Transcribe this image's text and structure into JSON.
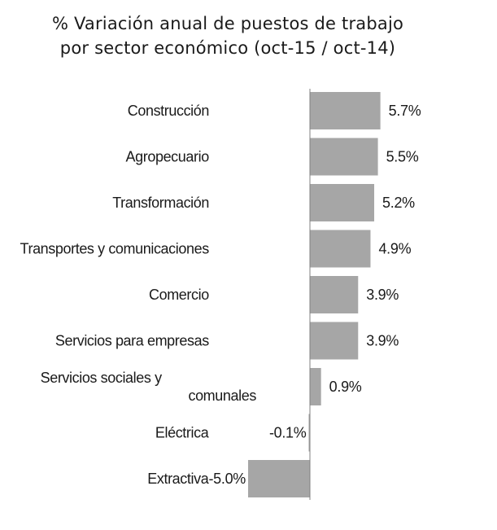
{
  "chart_data": {
    "type": "bar",
    "orientation": "horizontal",
    "title": [
      "% Variación anual de puestos de trabajo",
      "por sector económico (oct-15 / oct-14)"
    ],
    "categories": [
      [
        "Construcción"
      ],
      [
        "Agropecuario"
      ],
      [
        "Transformación"
      ],
      [
        "Transportes y comunicaciones"
      ],
      [
        "Comercio"
      ],
      [
        "Servicios para empresas"
      ],
      [
        "Servicios sociales y",
        "comunales"
      ],
      [
        "Eléctrica"
      ],
      [
        "Extractiva"
      ]
    ],
    "values": [
      5.7,
      5.5,
      5.2,
      4.9,
      3.9,
      3.9,
      0.9,
      -0.1,
      -5.0
    ],
    "data_labels": [
      "5.7%",
      "5.5%",
      "5.2%",
      "4.9%",
      "3.9%",
      "3.9%",
      "0.9%",
      "-0.1%",
      "-5.0%"
    ],
    "bar_color": "#a6a6a6",
    "axis_color": "#808080",
    "legend": "none",
    "grid": false
  }
}
